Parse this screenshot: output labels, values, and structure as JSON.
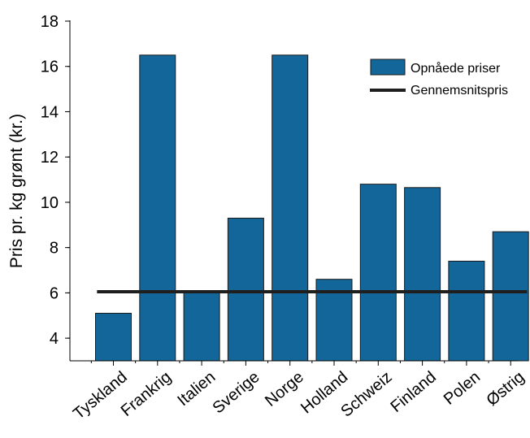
{
  "chart_data": {
    "type": "bar",
    "title": "",
    "xlabel": "",
    "ylabel": "Pris pr. kg grønt (kr.)",
    "categories": [
      "Tyskland",
      "Frankrig",
      "Italien",
      "Sverige",
      "Norge",
      "Holland",
      "Schweiz",
      "Finland",
      "Polen",
      "Østrig"
    ],
    "series": [
      {
        "name": "Opnåede priser",
        "values": [
          5.1,
          16.5,
          6.0,
          9.3,
          16.5,
          6.6,
          10.8,
          10.65,
          7.4,
          8.7
        ],
        "color": "#12669a"
      }
    ],
    "reference_line": {
      "name": "Gennemsnitspris",
      "value": 6.05,
      "color": "#1f1f1f"
    },
    "ylim": [
      3,
      18
    ],
    "yticks": [
      4,
      6,
      8,
      10,
      12,
      14,
      16,
      18
    ],
    "grid": false,
    "legend_position": "top-right"
  }
}
